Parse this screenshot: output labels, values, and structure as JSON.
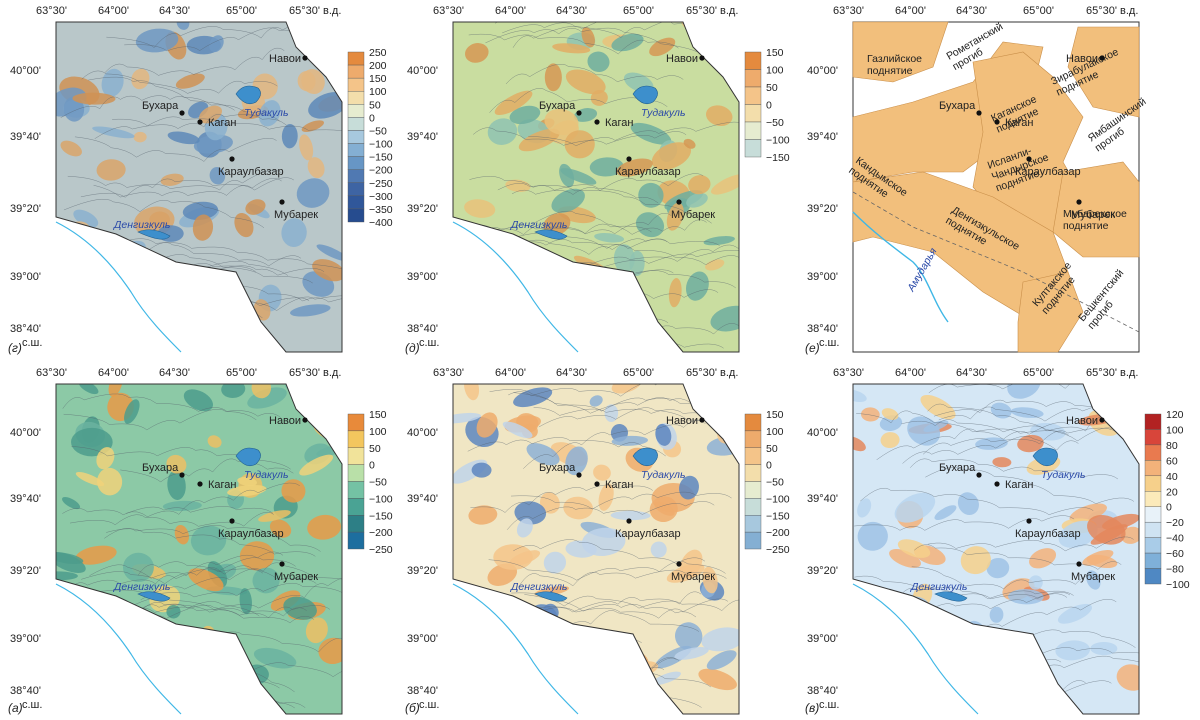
{
  "lon_ticks": [
    "63°30'",
    "64°00'",
    "64°30'",
    "65°00'",
    "65°30' в.д."
  ],
  "lat_ticks": [
    "40°00'",
    "39°40'",
    "39°20'",
    "39°00'",
    "38°40'"
  ],
  "lat_unit": "с.ш.",
  "cities": {
    "navoi": "Навои",
    "bukhara": "Бухара",
    "kagan": "Каган",
    "karaulbazar": "Караулбазар",
    "mubarek": "Мубарек"
  },
  "lakes": {
    "tudakul": "Тудакуль",
    "dengizkul": "Денгизкуль"
  },
  "panels": [
    {
      "id": "g",
      "tag": "(г)",
      "colorbar": [
        "250",
        "200",
        "150",
        "100",
        "50",
        "0",
        "−50",
        "−100",
        "−150",
        "−200",
        "−250",
        "−300",
        "−350",
        "−400"
      ]
    },
    {
      "id": "d",
      "tag": "(д)",
      "colorbar": [
        "150",
        "100",
        "50",
        "0",
        "−50",
        "−100",
        "−150"
      ]
    },
    {
      "id": "e",
      "tag": "(е)"
    },
    {
      "id": "a",
      "tag": "(а)",
      "colorbar": [
        "150",
        "100",
        "50",
        "0",
        "−50",
        "−100",
        "−150",
        "−200",
        "−250"
      ]
    },
    {
      "id": "b",
      "tag": "(б)",
      "colorbar": [
        "150",
        "100",
        "50",
        "0",
        "−50",
        "−100",
        "−150",
        "−200",
        "−250"
      ]
    },
    {
      "id": "v",
      "tag": "(в)",
      "colorbar": [
        "120",
        "100",
        "80",
        "60",
        "40",
        "20",
        "0",
        "−20",
        "−40",
        "−60",
        "−80",
        "−100"
      ]
    }
  ],
  "structures": {
    "gazli": [
      "Газлийское",
      "поднятие"
    ],
    "rometan": [
      "Рометанский",
      "прогиб"
    ],
    "zirabulak": [
      "Зирабулакское",
      "поднятие"
    ],
    "kagan_up": [
      "Каганское",
      "поднятие"
    ],
    "yambashin": [
      "Ямбашинский",
      "прогиб"
    ],
    "kandym": [
      "Кандымское",
      "поднятие"
    ],
    "islanli": [
      "Исланли-",
      "Чандырское",
      "поднятие"
    ],
    "mubarek_up": [
      "Мубарекское",
      "поднятие"
    ],
    "dengizkul_up": [
      "Денгизкульское",
      "поднятие"
    ],
    "kultak": [
      "Култакское",
      "поднятие"
    ],
    "beshkent": [
      "Бешкентский",
      "прогиб"
    ],
    "amudarya": "Амударья"
  },
  "colors": {
    "frame": "#333333",
    "river": "#3fb7e6",
    "lake": "#3d8fcc",
    "uplift": "#f2bf7c",
    "text": "#222222",
    "lake_text": "#2a49a8"
  }
}
